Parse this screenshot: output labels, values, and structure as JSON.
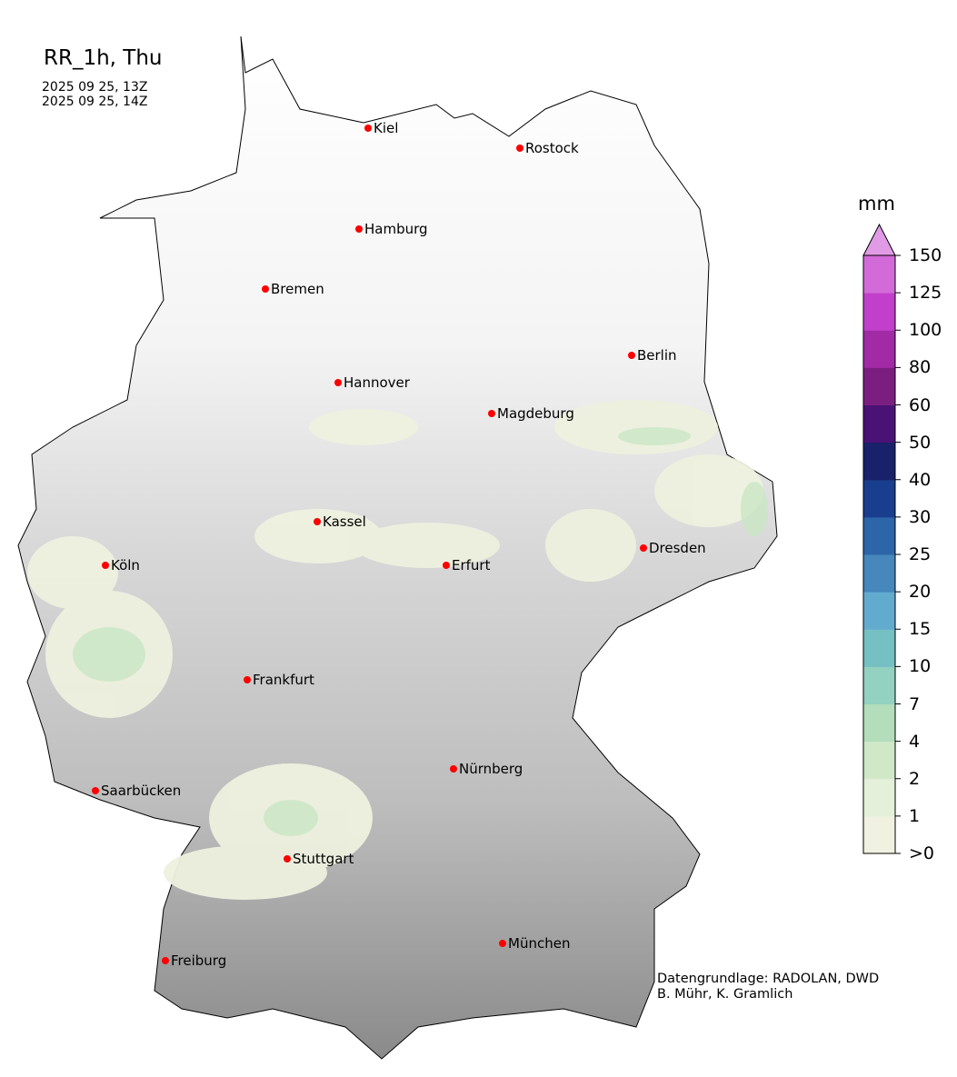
{
  "title": "RR_1h, Thu",
  "time_start": "2025 09 25, 13Z",
  "time_end": "2025 09 25, 14Z",
  "credit_line1": "Datengrundlage: RADOLAN, DWD",
  "credit_line2": " B. Mühr, K. Gramlich",
  "colorbar": {
    "unit": "mm",
    "ticks": [
      ">0",
      "1",
      "2",
      "4",
      "7",
      "10",
      "15",
      "20",
      "25",
      "30",
      "40",
      "50",
      "60",
      "80",
      "100",
      "125",
      "150"
    ],
    "colors": [
      "#f1f1e1",
      "#e4f0d9",
      "#d1e8c8",
      "#b3ddbb",
      "#93d1c0",
      "#74c0c2",
      "#62abcf",
      "#4687bc",
      "#2c65a8",
      "#183e8d",
      "#19216a",
      "#4a1275",
      "#7a1f7f",
      "#a12aa5",
      "#c23fcb",
      "#d26ad8"
    ],
    "extend_color": "#e19ae6"
  },
  "cities": [
    {
      "name": "Kiel"
    },
    {
      "name": "Rostock"
    },
    {
      "name": "Hamburg"
    },
    {
      "name": "Bremen"
    },
    {
      "name": "Berlin"
    },
    {
      "name": "Hannover"
    },
    {
      "name": "Magdeburg"
    },
    {
      "name": "Kassel"
    },
    {
      "name": "Dresden"
    },
    {
      "name": "Köln"
    },
    {
      "name": "Erfurt"
    },
    {
      "name": "Frankfurt"
    },
    {
      "name": "Nürnberg"
    },
    {
      "name": "Saarbücken"
    },
    {
      "name": "Stuttgart"
    },
    {
      "name": "München"
    },
    {
      "name": "Freiburg"
    }
  ],
  "city_marker_color": "#ff0000"
}
